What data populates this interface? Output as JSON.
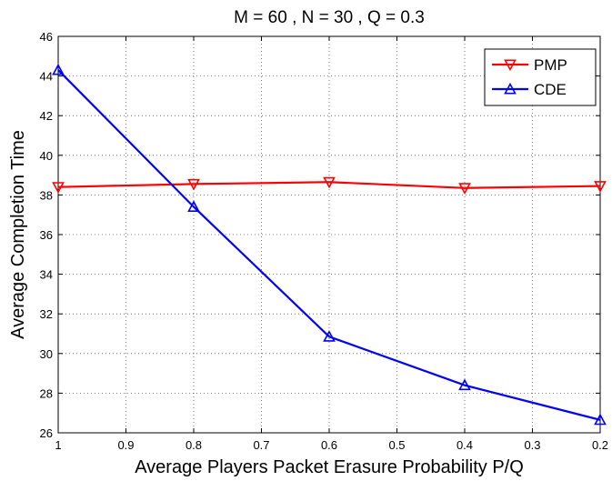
{
  "chart_data": {
    "type": "line",
    "title": "M = 60 , N = 30 , Q = 0.3",
    "xlabel": "Average Players Packet Erasure Probability P/Q",
    "ylabel": "Average Completion Time",
    "xlim": [
      1,
      0.2
    ],
    "ylim": [
      26,
      46
    ],
    "x_reversed": true,
    "xticks": [
      "1",
      "0.9",
      "0.8",
      "0.7",
      "0.6",
      "0.5",
      "0.4",
      "0.3",
      "0.2"
    ],
    "xtick_values": [
      1,
      0.9,
      0.8,
      0.7,
      0.6,
      0.5,
      0.4,
      0.3,
      0.2
    ],
    "yticks": [
      "26",
      "28",
      "30",
      "32",
      "34",
      "36",
      "38",
      "40",
      "42",
      "44",
      "46"
    ],
    "ytick_values": [
      26,
      28,
      30,
      32,
      34,
      36,
      38,
      40,
      42,
      44,
      46
    ],
    "grid": true,
    "legend_position": "top-right",
    "series": [
      {
        "name": "PMP",
        "color": "#ff0000",
        "marker": "triangle-down",
        "x": [
          1,
          0.8,
          0.6,
          0.4,
          0.2
        ],
        "y": [
          38.4,
          38.55,
          38.65,
          38.35,
          38.45
        ]
      },
      {
        "name": "CDE",
        "color": "#0000ff",
        "marker": "triangle-up",
        "x": [
          1,
          0.8,
          0.6,
          0.4,
          0.2
        ],
        "y": [
          44.3,
          37.4,
          30.85,
          28.4,
          26.65
        ]
      }
    ]
  }
}
